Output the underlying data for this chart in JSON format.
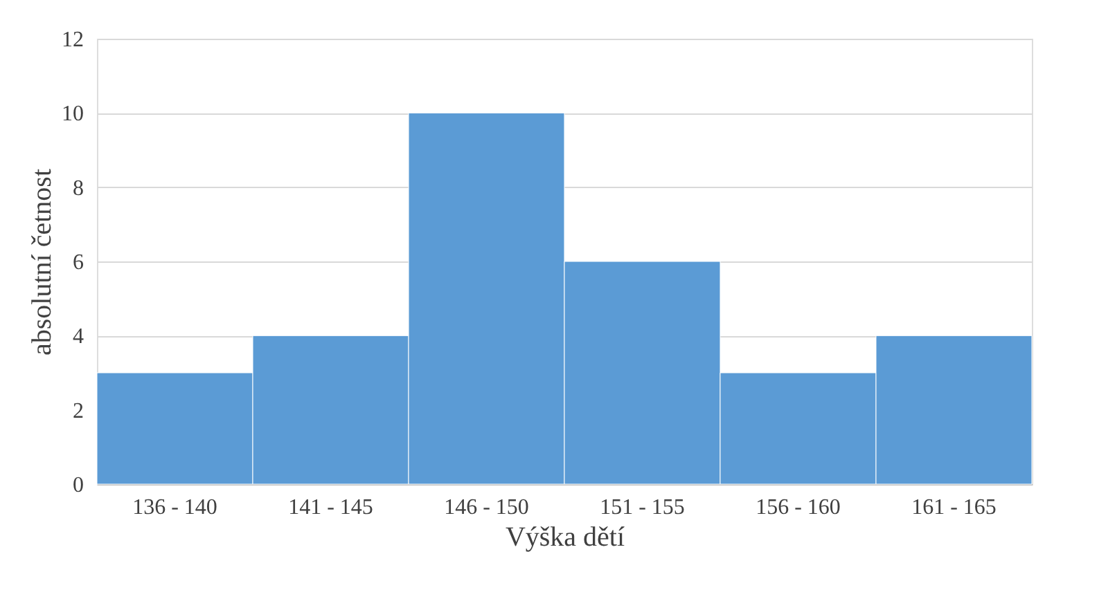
{
  "chart_data": {
    "type": "bar",
    "xlabel": "Výška dětí",
    "ylabel": "absolutní četnost",
    "categories": [
      "136 - 140",
      "141 - 145",
      "146 - 150",
      "151 - 155",
      "156 - 160",
      "161 - 165"
    ],
    "values": [
      3,
      4,
      10,
      6,
      3,
      4
    ],
    "color": "#5b9bd5",
    "ylim": [
      0,
      12
    ],
    "yticks": [
      0,
      2,
      4,
      6,
      8,
      10,
      12
    ],
    "grid": "y"
  }
}
